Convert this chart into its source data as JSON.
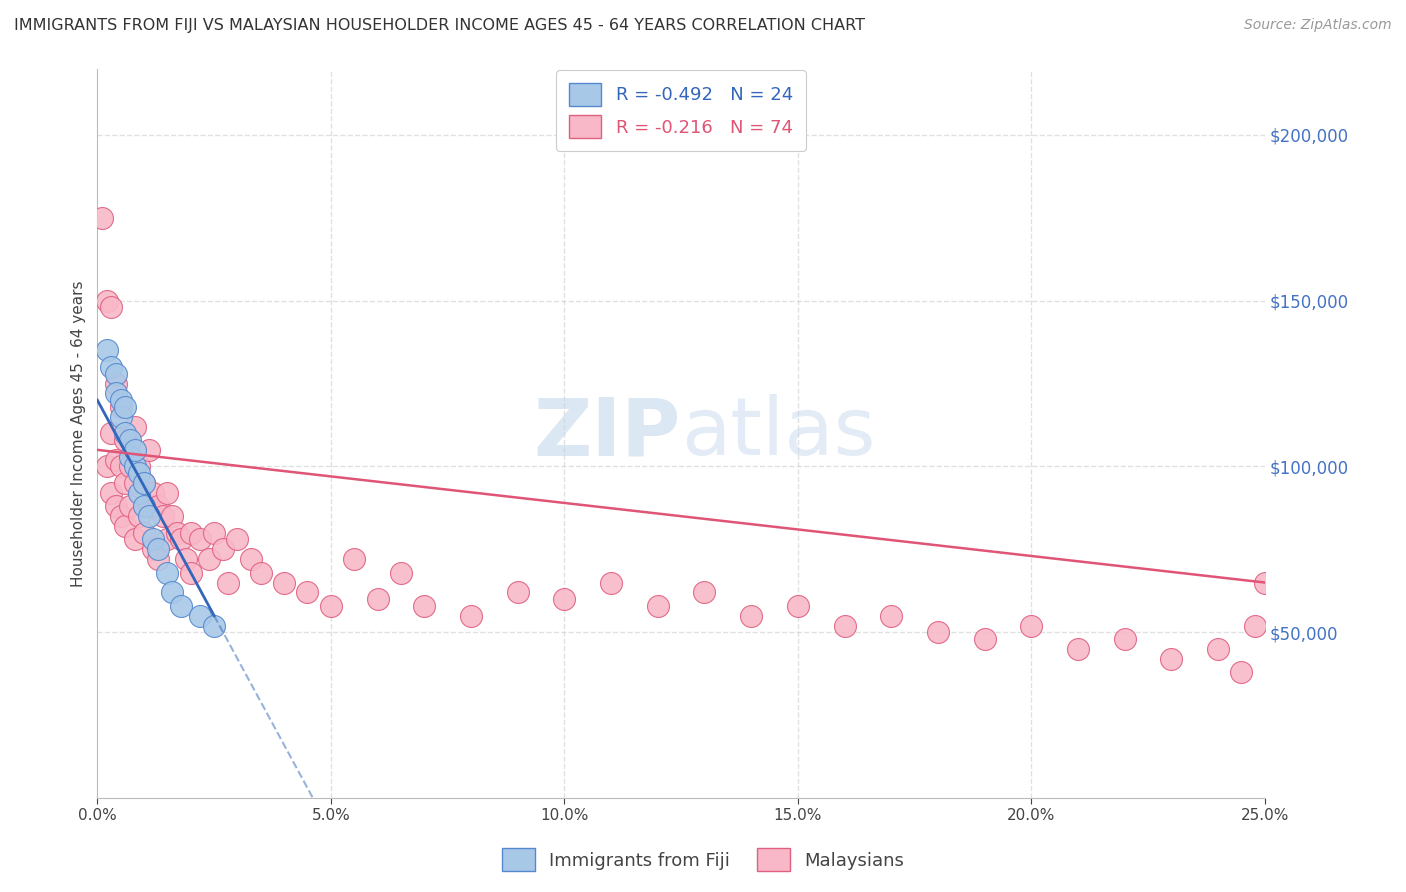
{
  "title": "IMMIGRANTS FROM FIJI VS MALAYSIAN HOUSEHOLDER INCOME AGES 45 - 64 YEARS CORRELATION CHART",
  "source": "Source: ZipAtlas.com",
  "ylabel": "Householder Income Ages 45 - 64 years",
  "ytick_labels": [
    "$50,000",
    "$100,000",
    "$150,000",
    "$200,000"
  ],
  "ytick_values": [
    50000,
    100000,
    150000,
    200000
  ],
  "ylim": [
    0,
    220000
  ],
  "xlim": [
    0.0,
    0.25
  ],
  "xtick_positions": [
    0.0,
    0.05,
    0.1,
    0.15,
    0.2,
    0.25
  ],
  "xtick_labels": [
    "0.0%",
    "5.0%",
    "10.0%",
    "15.0%",
    "20.0%",
    "25.0%"
  ],
  "legend_fiji_r": "-0.492",
  "legend_fiji_n": "24",
  "legend_malay_r": "-0.216",
  "legend_malay_n": "74",
  "fiji_color": "#a8c8e8",
  "fiji_edge_color": "#5588cc",
  "fiji_line_color": "#3366bb",
  "malay_color": "#f8b8c8",
  "malay_edge_color": "#e06080",
  "malay_line_color": "#e05575",
  "fiji_scatter_x": [
    0.002,
    0.003,
    0.004,
    0.004,
    0.005,
    0.005,
    0.006,
    0.006,
    0.007,
    0.007,
    0.008,
    0.008,
    0.009,
    0.009,
    0.01,
    0.01,
    0.011,
    0.012,
    0.013,
    0.015,
    0.016,
    0.018,
    0.022,
    0.025
  ],
  "fiji_scatter_y": [
    135000,
    130000,
    128000,
    122000,
    120000,
    115000,
    118000,
    110000,
    108000,
    103000,
    100000,
    105000,
    98000,
    92000,
    95000,
    88000,
    85000,
    78000,
    75000,
    68000,
    62000,
    58000,
    55000,
    52000
  ],
  "malay_scatter_x": [
    0.001,
    0.002,
    0.002,
    0.003,
    0.003,
    0.003,
    0.004,
    0.004,
    0.004,
    0.005,
    0.005,
    0.005,
    0.006,
    0.006,
    0.006,
    0.007,
    0.007,
    0.008,
    0.008,
    0.008,
    0.009,
    0.009,
    0.01,
    0.01,
    0.011,
    0.011,
    0.012,
    0.012,
    0.013,
    0.013,
    0.014,
    0.015,
    0.015,
    0.016,
    0.017,
    0.018,
    0.019,
    0.02,
    0.02,
    0.022,
    0.024,
    0.025,
    0.027,
    0.028,
    0.03,
    0.033,
    0.035,
    0.04,
    0.045,
    0.05,
    0.055,
    0.06,
    0.065,
    0.07,
    0.08,
    0.09,
    0.1,
    0.11,
    0.12,
    0.13,
    0.14,
    0.15,
    0.16,
    0.17,
    0.18,
    0.19,
    0.2,
    0.21,
    0.22,
    0.23,
    0.24,
    0.245,
    0.248,
    0.25
  ],
  "malay_scatter_y": [
    175000,
    150000,
    100000,
    148000,
    110000,
    92000,
    125000,
    102000,
    88000,
    118000,
    100000,
    85000,
    108000,
    95000,
    82000,
    100000,
    88000,
    112000,
    95000,
    78000,
    100000,
    85000,
    95000,
    80000,
    105000,
    88000,
    92000,
    75000,
    88000,
    72000,
    85000,
    92000,
    78000,
    85000,
    80000,
    78000,
    72000,
    80000,
    68000,
    78000,
    72000,
    80000,
    75000,
    65000,
    78000,
    72000,
    68000,
    65000,
    62000,
    58000,
    72000,
    60000,
    68000,
    58000,
    55000,
    62000,
    60000,
    65000,
    58000,
    62000,
    55000,
    58000,
    52000,
    55000,
    50000,
    48000,
    52000,
    45000,
    48000,
    42000,
    45000,
    38000,
    52000,
    65000
  ],
  "watermark_zip": "ZIP",
  "watermark_atlas": "atlas",
  "background_color": "#ffffff",
  "grid_color": "#cccccc",
  "grid_alpha": 0.6
}
